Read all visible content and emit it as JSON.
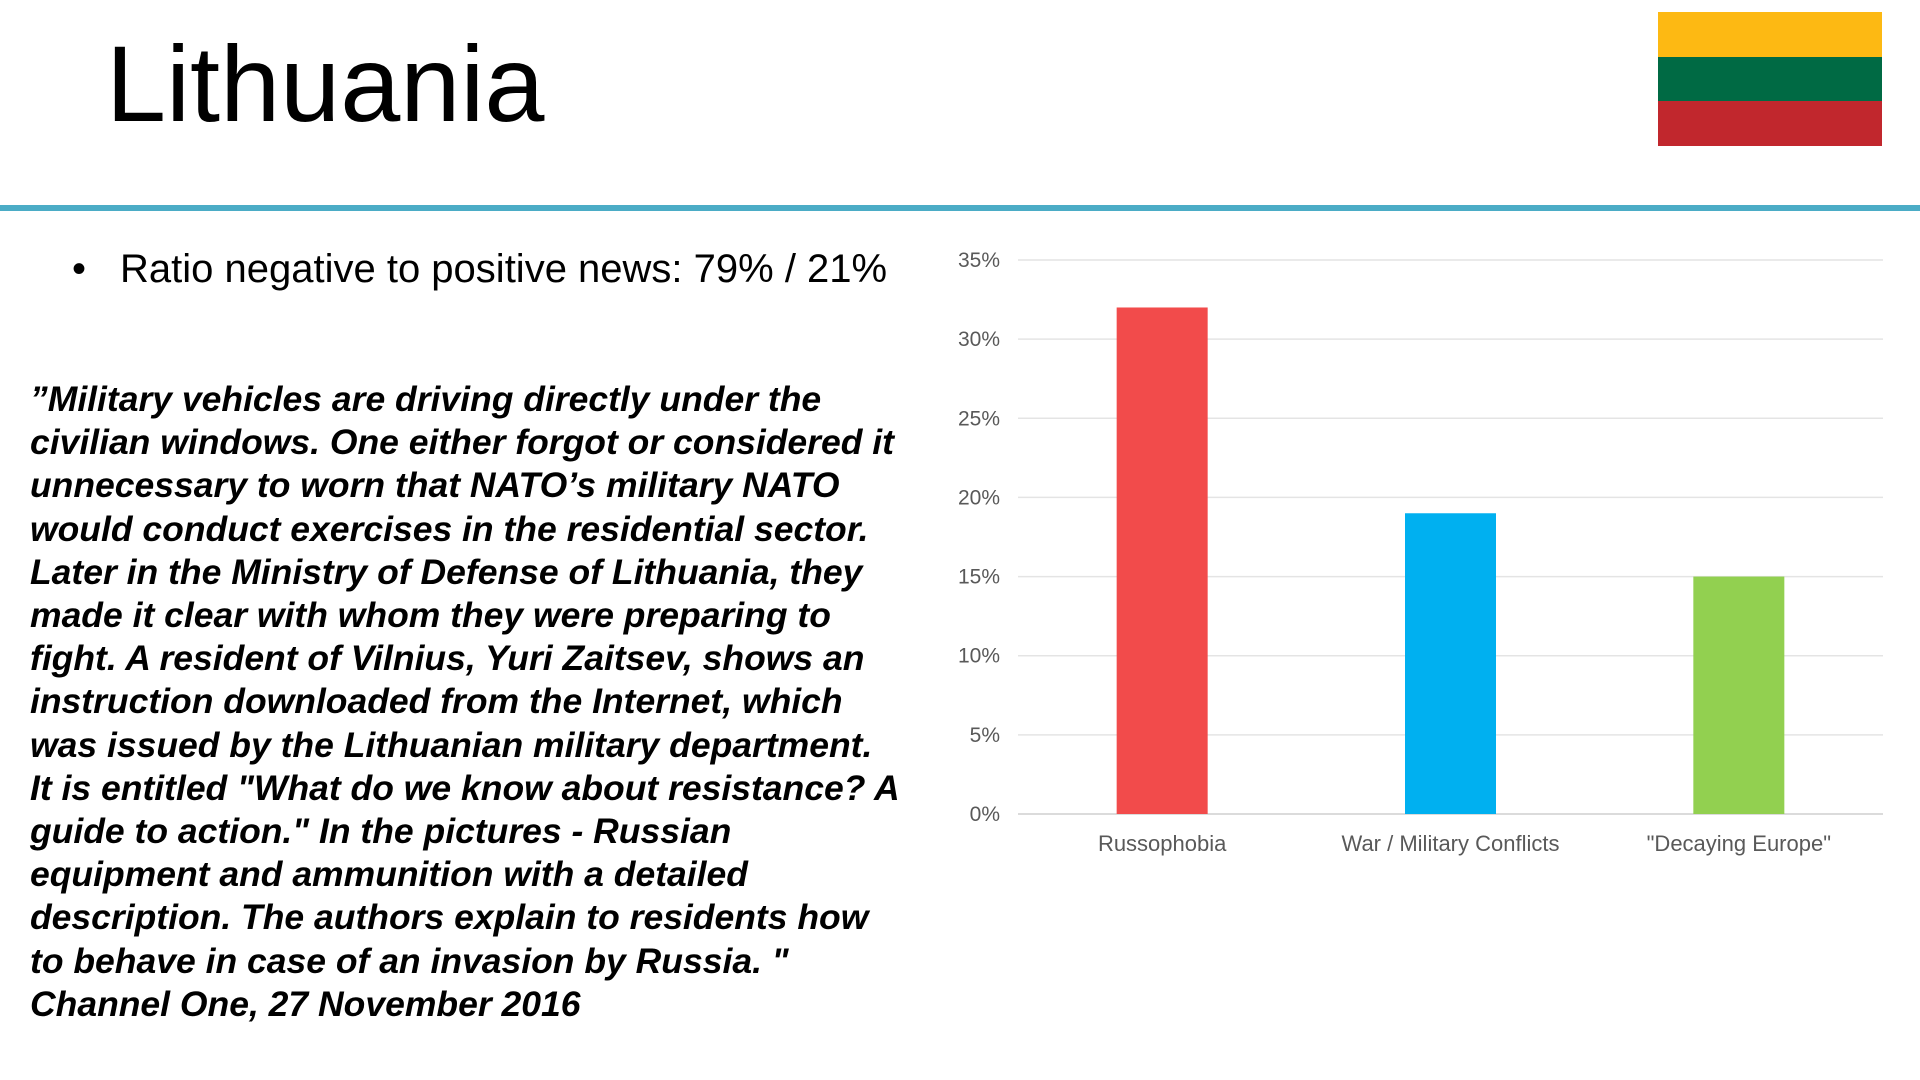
{
  "title": "Lithuania",
  "flag": {
    "colors": [
      "#FDB913",
      "#006A44",
      "#C1272D"
    ]
  },
  "divider_color": "#4BACC6",
  "bullet": {
    "symbol": "•",
    "text": "Ratio negative to positive news: 79% / 21%"
  },
  "quote": {
    "lines": [
      "”Military vehicles are driving directly under the",
      "civilian windows. One either forgot or considered it",
      "unnecessary to worn that NATO’s military NATO",
      "would conduct exercises in the residential sector.",
      "Later in the Ministry of Defense of Lithuania, they",
      "made it clear with whom they were preparing to",
      "fight. A resident of Vilnius, Yuri Zaitsev, shows an",
      "instruction downloaded from the Internet, which",
      "was issued by the Lithuanian military department.",
      "It is entitled \"What do we know about resistance? A",
      "guide to action.\" In the pictures - Russian",
      "equipment and ammunition with a detailed",
      "description. The authors explain to residents how",
      "to behave in case of an invasion by Russia. \"",
      "Channel One, 27 November 2016"
    ]
  },
  "chart_data": {
    "type": "bar",
    "categories": [
      "Russophobia",
      "War / Military Conflicts",
      "\"Decaying Europe\""
    ],
    "values": [
      32,
      19,
      15
    ],
    "colors": [
      "#F24B4B",
      "#00B0F0",
      "#92D050"
    ],
    "ylim": [
      0,
      35
    ],
    "yticks": [
      0,
      5,
      10,
      15,
      20,
      25,
      30,
      35
    ],
    "ytick_labels": [
      "0%",
      "5%",
      "10%",
      "15%",
      "20%",
      "25%",
      "30%",
      "35%"
    ],
    "grid": true,
    "legend": "none"
  }
}
